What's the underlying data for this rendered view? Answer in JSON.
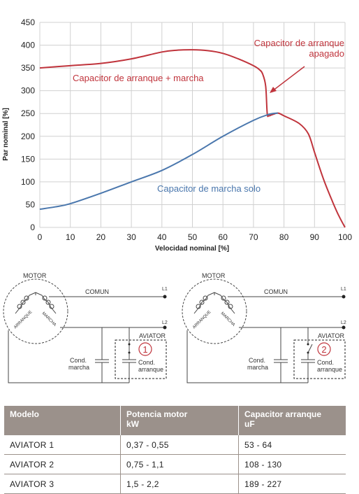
{
  "chart_data": {
    "type": "line",
    "xlabel": "Velocidad nominal  [%]",
    "ylabel": "Par nominal  [%]",
    "xlim": [
      0,
      100
    ],
    "ylim": [
      0,
      450
    ],
    "xticks": [
      0,
      10,
      20,
      30,
      40,
      50,
      60,
      70,
      80,
      90,
      100
    ],
    "yticks": [
      0,
      50,
      100,
      150,
      200,
      250,
      300,
      350,
      400,
      450
    ],
    "grid": true,
    "series": [
      {
        "name": "Capacitor de arranque + marcha",
        "color": "#c0343c",
        "x": [
          0,
          10,
          20,
          30,
          40,
          45,
          50,
          55,
          60,
          65,
          70,
          72,
          73,
          74,
          74.5,
          75,
          76,
          78,
          80,
          85,
          88,
          90,
          93,
          96,
          98,
          100
        ],
        "y": [
          350,
          355,
          360,
          370,
          385,
          389,
          390,
          388,
          382,
          370,
          355,
          346,
          337,
          310,
          250,
          245,
          247,
          251,
          245,
          228,
          205,
          165,
          105,
          55,
          25,
          0
        ]
      },
      {
        "name": "Capacitor de marcha solo",
        "color": "#4a77ad",
        "x": [
          0,
          5,
          10,
          20,
          30,
          40,
          50,
          60,
          70,
          75,
          78
        ],
        "y": [
          40,
          45,
          52,
          75,
          100,
          125,
          160,
          200,
          235,
          248,
          251
        ]
      }
    ],
    "annotations": [
      {
        "text": "Capacitor de arranque + marcha"
      },
      {
        "text": "Capacitor de marcha solo"
      },
      {
        "text_lines": [
          "Capacitor de arranque",
          "apagado"
        ]
      }
    ]
  },
  "diagrams": [
    {
      "motor": "MOTOR",
      "comun": "COMUN",
      "l1": "L1",
      "l2": "L2",
      "arranque": "ARRANQUE",
      "marcha": "MARCHA",
      "aviator": "AVIATOR",
      "cond_marcha": [
        "Cond.",
        "marcha"
      ],
      "cond_arranque": [
        "Cond.",
        "arranque"
      ],
      "badge": "1"
    },
    {
      "motor": "MOTOR",
      "comun": "COMUN",
      "l1": "L1",
      "l2": "L2",
      "arranque": "ARRANQUE",
      "marcha": "MARCHA",
      "aviator": "AVIATOR",
      "cond_marcha": [
        "Cond.",
        "marcha"
      ],
      "cond_arranque": [
        "Cond.",
        "arranque"
      ],
      "badge": "2"
    }
  ],
  "table": {
    "headers": [
      [
        "Modelo"
      ],
      [
        "Potencia motor",
        "kW"
      ],
      [
        "Capacitor arranque",
        "uF"
      ]
    ],
    "rows": [
      [
        "AVIATOR 1",
        "0,37  -  0,55",
        "53  -  64"
      ],
      [
        "AVIATOR 2",
        "0,75  -  1,1",
        "108  -  130"
      ],
      [
        "AVIATOR 3",
        "1,5  -  2,2",
        "189  -  227"
      ]
    ]
  },
  "colors": {
    "red": "#c0343c",
    "blue": "#4a77ad",
    "grid": "#d0d0d0",
    "table_header": "#9b918b"
  }
}
